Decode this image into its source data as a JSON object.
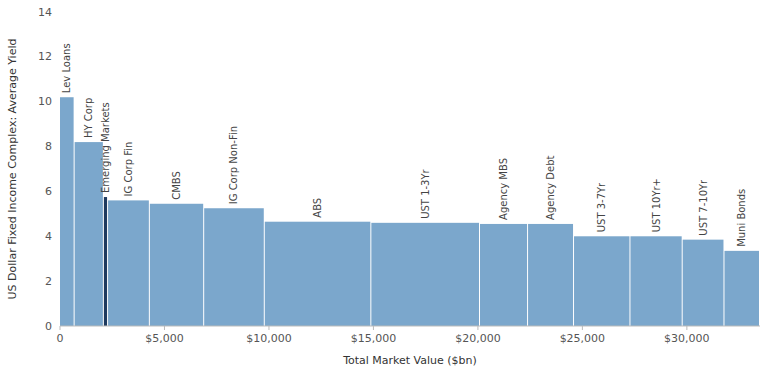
{
  "chart_data": {
    "type": "bar",
    "categories": [
      "Lev Loans",
      "HY Corp",
      "Emerging Markets",
      "IG Corp Fin",
      "CMBS",
      "IG Corp Non-Fin",
      "ABS",
      "UST 1-3Yr",
      "Agency MBS",
      "Agency Debt",
      "UST 3-7Yr",
      "UST 10Yr+",
      "UST 7-10Yr",
      "Muni Bonds"
    ],
    "values": [
      10.2,
      8.2,
      5.75,
      5.6,
      5.45,
      5.25,
      4.65,
      4.6,
      4.55,
      4.55,
      4.0,
      4.0,
      3.85,
      3.35
    ],
    "bins": [
      0,
      700,
      2100,
      2300,
      4300,
      6900,
      9800,
      14900,
      20100,
      22400,
      24600,
      27300,
      29800,
      31800,
      33500
    ],
    "colors": [
      "#7ba7cc",
      "#7ba7cc",
      "#1e3a5f",
      "#7ba7cc",
      "#7ba7cc",
      "#7ba7cc",
      "#7ba7cc",
      "#7ba7cc",
      "#7ba7cc",
      "#7ba7cc",
      "#7ba7cc",
      "#7ba7cc",
      "#7ba7cc",
      "#7ba7cc"
    ],
    "xlabel": "Total Market Value ($bn)",
    "ylabel": "US Dollar Fixed Income Complex: Average Yield",
    "xlim": [
      0,
      33500
    ],
    "ylim": [
      0,
      14
    ],
    "xticks": [
      0,
      {
        "value": 5000,
        "label": "$5,000"
      },
      {
        "value": 10000,
        "label": "$10,000"
      },
      {
        "value": 15000,
        "label": "$15,000"
      },
      {
        "value": 20000,
        "label": "$20,000"
      },
      {
        "value": 25000,
        "label": "$25,000"
      },
      {
        "value": 30000,
        "label": "$30,000"
      }
    ],
    "yticks": [
      0,
      2,
      4,
      6,
      8,
      10,
      12,
      14
    ],
    "grid": false
  }
}
